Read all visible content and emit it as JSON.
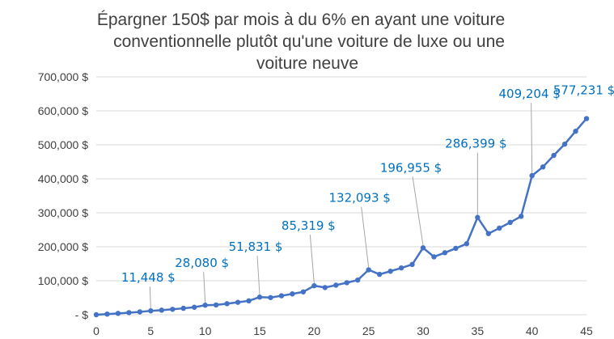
{
  "chart_data": {
    "type": "line",
    "title": [
      "Épargner 150$ par mois à du 6% en ayant une voiture",
      "conventionnelle plutôt qu'une voiture de luxe ou une",
      "voiture neuve"
    ],
    "xlabel": "",
    "ylabel": "",
    "xlim": [
      0,
      45
    ],
    "ylim": [
      0,
      700000
    ],
    "x_ticks": [
      "0",
      "5",
      "10",
      "15",
      "20",
      "25",
      "30",
      "35",
      "40",
      "45"
    ],
    "y_ticks": [
      "-    $",
      "100,000  $",
      "200,000  $",
      "300,000  $",
      "400,000  $",
      "500,000  $",
      "600,000  $",
      "700,000  $"
    ],
    "grid": "horizontal",
    "colors": {
      "line": "#4472c4",
      "label": "#0070c0",
      "leader": "#a6a6a6",
      "text": "#404040"
    },
    "series": [
      {
        "x": [
          0,
          1,
          2,
          3,
          4,
          5,
          6,
          7,
          8,
          9,
          10,
          11,
          12,
          13,
          14,
          15,
          16,
          17,
          18,
          19,
          20,
          21,
          22,
          23,
          24,
          25,
          26,
          27,
          28,
          29,
          30,
          31,
          32,
          33,
          34,
          35,
          36,
          37,
          38,
          39,
          40,
          41,
          42,
          43,
          44,
          45
        ],
        "values": [
          0,
          1908,
          3929,
          6071,
          8345,
          11448,
          13400,
          16000,
          18900,
          22000,
          28080,
          28800,
          32500,
          36500,
          40900,
          51831,
          50500,
          55800,
          61300,
          67200,
          85319,
          80000,
          87000,
          94300,
          102000,
          132093,
          118900,
          128000,
          137700,
          147900,
          196955,
          170300,
          182500,
          195400,
          209000,
          286399,
          238800,
          254900,
          271700,
          289600,
          409204,
          435000,
          469000,
          502000,
          540000,
          577231
        ]
      }
    ],
    "data_labels": [
      {
        "x": 5,
        "y": 11448,
        "text": "11,448  $"
      },
      {
        "x": 10,
        "y": 28080,
        "text": "28,080  $"
      },
      {
        "x": 15,
        "y": 51831,
        "text": "51,831  $"
      },
      {
        "x": 20,
        "y": 85319,
        "text": "85,319  $"
      },
      {
        "x": 25,
        "y": 132093,
        "text": "132,093  $"
      },
      {
        "x": 30,
        "y": 196955,
        "text": "196,955  $"
      },
      {
        "x": 35,
        "y": 286399,
        "text": "286,399  $"
      },
      {
        "x": 40,
        "y": 409204,
        "text": "409,204  $"
      },
      {
        "x": 45,
        "y": 577231,
        "text": "577,231  $"
      }
    ]
  }
}
